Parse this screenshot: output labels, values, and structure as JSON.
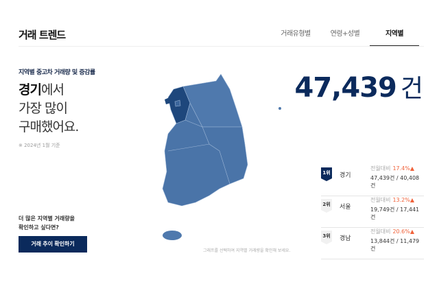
{
  "header": {
    "title": "거래 트렌드",
    "tabs": [
      {
        "label": "거래유형별"
      },
      {
        "label": "연령+성별"
      },
      {
        "label": "지역별",
        "active": true
      }
    ]
  },
  "left": {
    "subtitle": "지역별 중고차 거래량 및 증감률",
    "region": "경기",
    "line1_suffix": "에서",
    "line2": "가장 많이",
    "line3": "구매했어요.",
    "note": "※ 2024년 1월 기준",
    "more_line1": "더 많은 지역별 거래량을",
    "more_line2": "확인하고 싶다면?",
    "button": "거래 추이 확인하기"
  },
  "map": {
    "hint": "그래프를 선택하여 지역별 거래량을 확인해 보세요.",
    "highlight_color": "#1e477c",
    "base_color": "#4a74a8"
  },
  "total": {
    "value": "47,439",
    "unit": "건"
  },
  "ranks": [
    {
      "rank": "1위",
      "name": "경기",
      "label": "전월대비",
      "pct": "17.4%▲",
      "count": "47,439건 / 40,408건"
    },
    {
      "rank": "2위",
      "name": "서울",
      "label": "전월대비",
      "pct": "13.2%▲",
      "count": "19,749건 / 17,441건"
    },
    {
      "rank": "3위",
      "name": "경남",
      "label": "전월대비",
      "pct": "20.6%▲",
      "count": "13,844건 / 11,479건"
    }
  ]
}
